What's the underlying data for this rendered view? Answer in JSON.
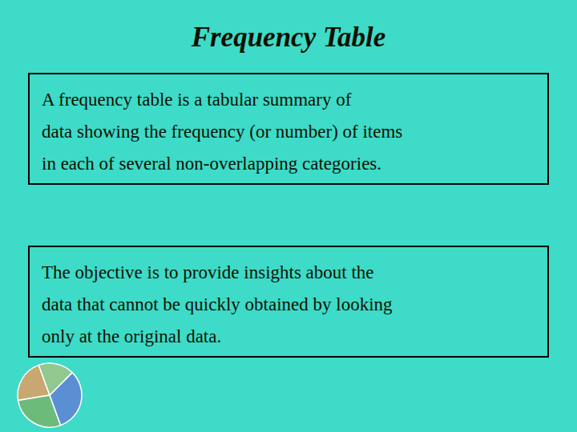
{
  "chart_data": {
    "type": "pie",
    "title": "Frequency Table",
    "annotations": [
      [
        "A frequency table is a tabular summary of",
        "data showing the frequency (or number) of items",
        "in each of several non-overlapping categories."
      ],
      [
        "The objective is to provide insights about the",
        "data that cannot be quickly obtained by looking",
        "only at the original data."
      ]
    ],
    "values": [
      0.22,
      0.28,
      0.32,
      0.18
    ],
    "colors": [
      "#c8a870",
      "#6dbb7a",
      "#5b8fd4",
      "#90c890"
    ]
  }
}
